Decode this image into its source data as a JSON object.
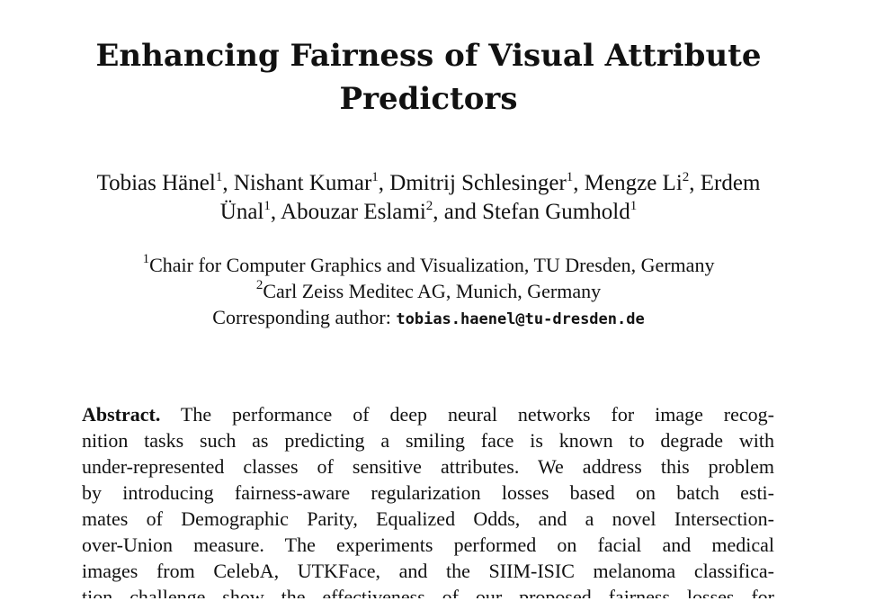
{
  "title": {
    "line1": "Enhancing Fairness of Visual Attribute",
    "line2": "Predictors"
  },
  "authors": [
    {
      "name": "Tobias Hänel",
      "sup": "1",
      "sep": ", "
    },
    {
      "name": "Nishant Kumar",
      "sup": "1",
      "sep": ", "
    },
    {
      "name": "Dmitrij Schlesinger",
      "sup": "1",
      "sep": ", "
    },
    {
      "name": "Mengze Li",
      "sup": "2",
      "sep": ", "
    },
    {
      "name_part1": "Erdem",
      "name_part2": "Ünal",
      "sup": "1",
      "sep": ", "
    },
    {
      "name": "Abouzar Eslami",
      "sup": "2",
      "sep": ", and "
    },
    {
      "name": "Stefan Gumhold",
      "sup": "1",
      "sep": ""
    }
  ],
  "affiliations": [
    {
      "sup": "1",
      "text": "Chair for Computer Graphics and Visualization, TU Dresden, Germany"
    },
    {
      "sup": "2",
      "text": "Carl Zeiss Meditec AG, Munich, Germany"
    }
  ],
  "corresponding": {
    "label": "Corresponding author: ",
    "email": "tobias.haenel@tu-dresden.de"
  },
  "abstract": {
    "label": "Abstract.",
    "lines": [
      " The performance of deep neural networks for image recog-",
      "nition tasks such as predicting a smiling face is known to degrade with",
      "under-represented classes of sensitive attributes. We address this problem",
      "by introducing fairness-aware regularization losses based on batch esti-",
      "mates of Demographic Parity, Equalized Odds, and a novel Intersection-",
      "over-Union measure. The experiments performed on facial and medical",
      "images from CelebA, UTKFace, and the SIIM-ISIC melanoma classifica-",
      "tion challenge show the effectiveness of our proposed fairness losses for"
    ]
  }
}
